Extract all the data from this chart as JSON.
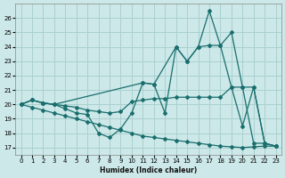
{
  "xlabel": "Humidex (Indice chaleur)",
  "bg_color": "#cce8e8",
  "grid_color": "#aad0d0",
  "line_color": "#1a6e6e",
  "xlim": [
    -0.5,
    23.5
  ],
  "ylim": [
    16.5,
    27.0
  ],
  "yticks": [
    17,
    18,
    19,
    20,
    21,
    22,
    23,
    24,
    25,
    26
  ],
  "xticks": [
    0,
    1,
    2,
    3,
    4,
    5,
    6,
    7,
    8,
    9,
    10,
    11,
    12,
    13,
    14,
    15,
    16,
    17,
    18,
    19,
    20,
    21,
    22,
    23
  ],
  "lineA_x": [
    0,
    1,
    2,
    3,
    4,
    5,
    6,
    7,
    8,
    9,
    10,
    11,
    12,
    13,
    14,
    15,
    16,
    17,
    18,
    19,
    20,
    21,
    22,
    23
  ],
  "lineA_y": [
    20.0,
    19.8,
    19.6,
    19.4,
    19.2,
    19.0,
    18.8,
    18.6,
    18.4,
    18.2,
    18.0,
    17.8,
    17.7,
    17.6,
    17.5,
    17.4,
    17.3,
    17.2,
    17.1,
    17.05,
    17.0,
    17.05,
    17.1,
    17.1
  ],
  "lineB_x": [
    0,
    1,
    2,
    3,
    4,
    5,
    6,
    7,
    8,
    9,
    10,
    11,
    12,
    13,
    14,
    15,
    16,
    17,
    18,
    19,
    20,
    21,
    22,
    23
  ],
  "lineB_y": [
    20.0,
    20.3,
    20.1,
    20.0,
    19.7,
    19.4,
    19.3,
    18.0,
    17.7,
    18.3,
    19.4,
    21.5,
    21.4,
    19.4,
    24.0,
    23.0,
    24.0,
    24.1,
    24.1,
    21.2,
    18.5,
    21.2,
    17.3,
    17.1
  ],
  "lineC_x": [
    0,
    1,
    2,
    3,
    11,
    12,
    14,
    15,
    16,
    17,
    18,
    19,
    20,
    21,
    22,
    23
  ],
  "lineC_y": [
    20.0,
    20.3,
    20.1,
    20.0,
    21.5,
    21.4,
    24.0,
    23.0,
    24.0,
    26.5,
    24.1,
    25.0,
    21.2,
    21.2,
    17.3,
    17.1
  ],
  "lineD_x": [
    0,
    1,
    2,
    3,
    4,
    5,
    6,
    7,
    8,
    9,
    10,
    11,
    12,
    13,
    14,
    15,
    16,
    17,
    18,
    19,
    20,
    21,
    22,
    23
  ],
  "lineD_y": [
    20.0,
    20.3,
    20.1,
    20.0,
    19.9,
    19.8,
    19.6,
    19.5,
    19.4,
    19.5,
    20.2,
    20.3,
    20.4,
    20.4,
    20.5,
    20.5,
    20.5,
    20.5,
    20.5,
    21.2,
    21.2,
    17.3,
    17.3,
    17.1
  ]
}
